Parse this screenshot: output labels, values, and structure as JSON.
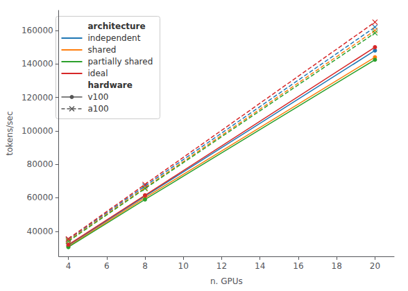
{
  "chart_data": {
    "type": "line",
    "xlabel": "n. GPUs",
    "ylabel": "tokens/sec",
    "x": [
      4,
      8,
      20
    ],
    "xlim": [
      3.5,
      21
    ],
    "ylim": [
      25000,
      172000
    ],
    "xticks": [
      4,
      6,
      8,
      10,
      12,
      14,
      16,
      18,
      20
    ],
    "yticks": [
      40000,
      60000,
      80000,
      100000,
      120000,
      140000,
      160000
    ],
    "grid": false,
    "legend": "upper left",
    "series": [
      {
        "name": "independent",
        "hardware": "v100",
        "color": "#1f77b4",
        "marker": "circle",
        "line_style": "solid",
        "values": [
          31500,
          61000,
          148000
        ]
      },
      {
        "name": "independent",
        "hardware": "a100",
        "color": "#1f77b4",
        "marker": "x",
        "line_style": "dashed",
        "values": [
          35000,
          67000,
          162000
        ]
      },
      {
        "name": "shared",
        "hardware": "v100",
        "color": "#ff7f0e",
        "marker": "circle",
        "line_style": "solid",
        "values": [
          31000,
          60000,
          144000
        ]
      },
      {
        "name": "shared",
        "hardware": "a100",
        "color": "#ff7f0e",
        "marker": "x",
        "line_style": "dashed",
        "values": [
          34500,
          66000,
          160000
        ]
      },
      {
        "name": "partially shared",
        "hardware": "v100",
        "color": "#2ca02c",
        "marker": "circle",
        "line_style": "solid",
        "values": [
          30500,
          59000,
          142500
        ]
      },
      {
        "name": "partially shared",
        "hardware": "a100",
        "color": "#2ca02c",
        "marker": "x",
        "line_style": "dashed",
        "values": [
          34000,
          65500,
          158500
        ]
      },
      {
        "name": "ideal",
        "hardware": "v100",
        "color": "#d62728",
        "marker": "circle",
        "line_style": "solid",
        "values": [
          32000,
          61500,
          150000
        ]
      },
      {
        "name": "ideal",
        "hardware": "a100",
        "color": "#d62728",
        "marker": "x",
        "line_style": "dashed",
        "values": [
          35500,
          68000,
          165000
        ]
      }
    ],
    "legend_groups": [
      {
        "title": "architecture",
        "entries": [
          {
            "name": "independent"
          },
          {
            "name": "shared"
          },
          {
            "name": "partially shared"
          },
          {
            "name": "ideal"
          }
        ]
      },
      {
        "title": "hardware",
        "entries": [
          {
            "name": "v100",
            "color": "#555555",
            "marker": "circle",
            "line_style": "solid"
          },
          {
            "name": "a100",
            "color": "#555555",
            "marker": "x",
            "line_style": "dashed"
          }
        ]
      }
    ]
  }
}
